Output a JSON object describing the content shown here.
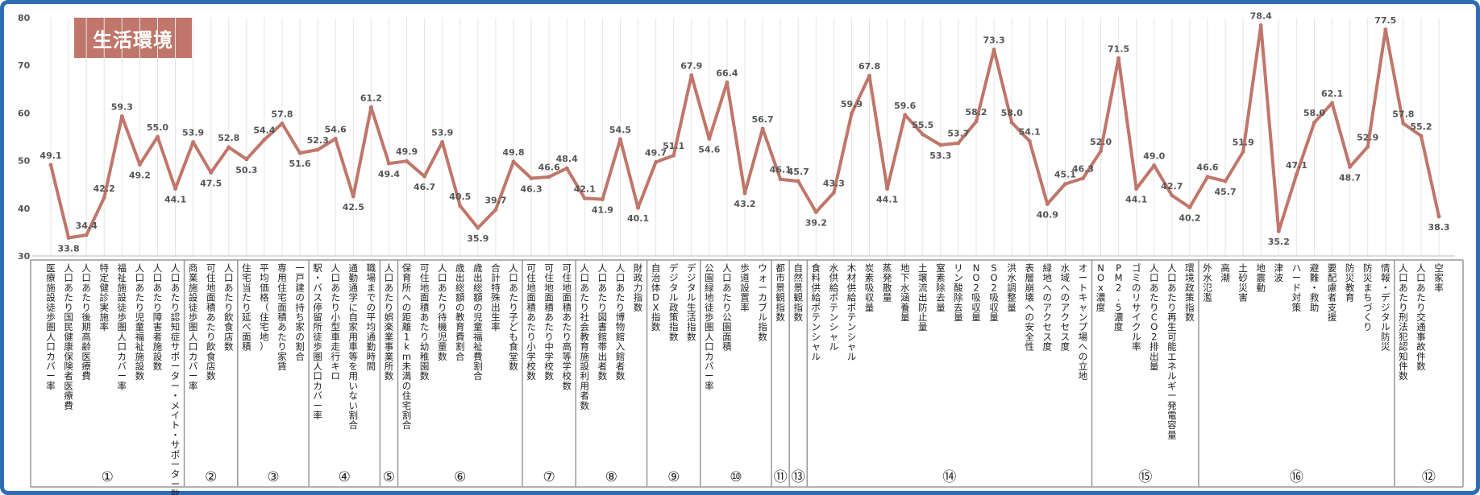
{
  "badge": "生活環境",
  "colors": {
    "line": "#c0766a",
    "frame": "#2f6db3",
    "badge": "#c0766a"
  },
  "chart_data": {
    "type": "line",
    "ylim": [
      30,
      80
    ],
    "yticks": [
      30,
      40,
      50,
      60,
      70,
      80
    ],
    "grid": false,
    "categories": [
      "医療施設徒歩圏人口カバー率",
      "人口あたり国民健康保険者医療費",
      "人口あたり後期高齢医療費",
      "特定健診実施率",
      "福祉施設徒歩圏人口カバー率",
      "人口あたり児童福祉施設数",
      "人口あたり障害者施設数",
      "人口あたり認知症サポーター・メイト・サポーター数",
      "商業施設徒歩圏人口カバー率",
      "可住地面積あたり飲食店数",
      "人口あたり飲食店数",
      "住宅当たり延べ面積",
      "平均価格（住宅地）",
      "専用住宅面積あたり家賃",
      "一戸建の持ち家の割合",
      "駅・バス停留所徒歩圏人口カバー率",
      "人口あたり小型車走行キロ",
      "通勤通学に自家用車等を用いない割合",
      "職場までの平均通勤時間",
      "人口あたり娯楽業事業所数",
      "保育所への距離1km未満の住宅割合",
      "可住地面積あたり幼稚園数",
      "人口あたり待機児童数",
      "歳出総額の教育費割合",
      "歳出総額の児童福祉費割合",
      "合計特殊出生率",
      "人口あたり子ども食堂数",
      "可住地面積あたり小学校数",
      "可住地面積あたり中学校数",
      "可住地面積あたり高等学校数",
      "人口あたり社会教育施設利用者数",
      "人口あたり図書館帯出者数",
      "人口あたり博物館入館者数",
      "財政力指数",
      "自治体DX指数",
      "デジタル政策指数",
      "デジタル生活指数",
      "公園緑地徒歩圏人口カバー率",
      "人口あたり公園面積",
      "歩道設置率",
      "ウォーカブル指数",
      "都市景観指数",
      "自然景観指数",
      "食料供給ポテンシャル",
      "水供給ポテンシャル",
      "木材供給ポテンシャル",
      "炭素吸収量",
      "蒸発散量",
      "地下水涵養量",
      "土壌流出防止量",
      "窒素除去量",
      "リン酸除去量",
      "NO2吸収量",
      "SO2吸収量",
      "洪水調整量",
      "表層崩壊への安全性",
      "緑地へのアクセス度",
      "水域へのアクセス度",
      "オートキャンプ場への立地",
      "NOx濃度",
      "PM2.5濃度",
      "ゴミのリサイクル率",
      "人口あたりCO2排出量",
      "人口あたり再生可能エネルギー発電容量",
      "環境政策指数",
      "外水氾濫",
      "高潮",
      "土砂災害",
      "地震動",
      "津波",
      "ハード対策",
      "避難・救助",
      "要配慮者支援",
      "防災教育",
      "防災まちづくり",
      "情報・デジタル防災",
      "人口あたり刑法犯認知件数",
      "人口あたり交通事故件数",
      "空家率"
    ],
    "values": [
      49.1,
      33.8,
      34.4,
      42.2,
      59.3,
      49.2,
      55.0,
      44.1,
      53.9,
      47.5,
      52.8,
      50.3,
      54.4,
      57.8,
      51.6,
      52.3,
      54.6,
      42.5,
      61.2,
      49.4,
      49.9,
      46.7,
      53.9,
      40.5,
      35.9,
      39.7,
      49.8,
      46.3,
      46.6,
      48.4,
      42.1,
      41.9,
      54.5,
      40.1,
      49.7,
      51.1,
      67.9,
      54.6,
      66.4,
      43.2,
      56.7,
      46.1,
      45.7,
      39.2,
      43.3,
      59.9,
      67.8,
      44.1,
      59.6,
      55.5,
      53.3,
      53.7,
      58.2,
      73.3,
      58.0,
      54.1,
      40.9,
      45.1,
      46.3,
      52.0,
      71.5,
      44.1,
      49.0,
      42.7,
      40.2,
      46.6,
      45.7,
      51.9,
      78.4,
      35.2,
      47.1,
      58.0,
      62.1,
      48.7,
      52.9,
      77.5,
      57.8,
      55.2,
      38.3
    ],
    "value_labels": [
      "49.1",
      "33.8",
      "34.4",
      "42.2",
      "59.3",
      "49.2",
      "55.0",
      "44.1",
      "53.9",
      "47.5",
      "52.8",
      "50.3",
      "54.4",
      "57.8",
      "51.6",
      "52.3",
      "54.6",
      "42.5",
      "61.2",
      "49.4",
      "49.9",
      "46.7",
      "53.9",
      "40.5",
      "35.9",
      "39.7",
      "49.8",
      "46.3",
      "46.6",
      "48.4",
      "42.1",
      "41.9",
      "54.5",
      "40.1",
      "49.7",
      "51.1",
      "67.9",
      "54.6",
      "66.4",
      "43.2",
      "56.7",
      "46.1",
      "45.7",
      "39.2",
      "43.3",
      "59.9",
      "67.8",
      "44.1",
      "59.6",
      "55.5",
      "53.3",
      "53.7",
      "58.2",
      "73.3",
      "58.0",
      "54.1",
      "40.9",
      "45.1",
      "46.3",
      "52.0",
      "71.5",
      "44.1",
      "49.0",
      "42.7",
      "40.2",
      "46.6",
      "45.7",
      "51.9",
      "78.4",
      "35.2",
      "47.1",
      "58.0",
      "62.1",
      "48.7",
      "52.9",
      "77.5",
      "57.8",
      "55.2",
      "38.3"
    ],
    "groups": [
      {
        "label": "①",
        "count": 8
      },
      {
        "label": "②",
        "count": 3
      },
      {
        "label": "③",
        "count": 4
      },
      {
        "label": "④",
        "count": 4
      },
      {
        "label": "⑤",
        "count": 1
      },
      {
        "label": "⑥",
        "count": 7
      },
      {
        "label": "⑦",
        "count": 3
      },
      {
        "label": "⑧",
        "count": 4
      },
      {
        "label": "⑨",
        "count": 3
      },
      {
        "label": "⑩",
        "count": 4
      },
      {
        "label": "⑪",
        "count": 1
      },
      {
        "label": "⑬",
        "count": 1
      },
      {
        "label": "⑭",
        "count": 16
      },
      {
        "label": "⑮",
        "count": 6
      },
      {
        "label": "⑯",
        "count": 11
      },
      {
        "label": "⑫",
        "count": 3
      }
    ]
  }
}
